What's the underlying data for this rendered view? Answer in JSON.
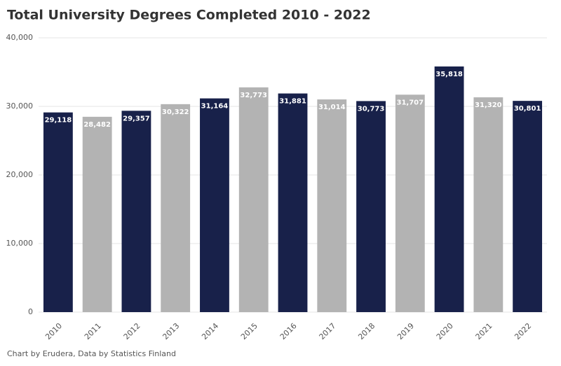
{
  "chart_data": {
    "type": "bar",
    "title": "Total University Degrees Completed 2010 - 2022",
    "source": "Chart by Erudera, Data by Statistics Finland",
    "categories": [
      "2010",
      "2011",
      "2012",
      "2013",
      "2014",
      "2015",
      "2016",
      "2017",
      "2018",
      "2019",
      "2020",
      "2021",
      "2022"
    ],
    "values": [
      29118,
      28482,
      29357,
      30322,
      31164,
      32773,
      31881,
      31014,
      30773,
      31707,
      35818,
      31320,
      30801
    ],
    "value_labels": [
      "29,118",
      "28,482",
      "29,357",
      "30,322",
      "31,164",
      "32,773",
      "31,881",
      "31,014",
      "30,773",
      "31,707",
      "35,818",
      "31,320",
      "30,801"
    ],
    "colors": [
      "#18214a",
      "#b3b3b3",
      "#18214a",
      "#b3b3b3",
      "#18214a",
      "#b3b3b3",
      "#18214a",
      "#b3b3b3",
      "#18214a",
      "#b3b3b3",
      "#18214a",
      "#b3b3b3",
      "#18214a"
    ],
    "ylim": [
      0,
      40000
    ],
    "yticks": [
      0,
      {
        "value": 10000,
        "label": "10,000"
      },
      {
        "value": 20000,
        "label": "20,000"
      },
      {
        "value": 30000,
        "label": "30,000"
      },
      {
        "value": 40000,
        "label": "40,000"
      }
    ],
    "grid": true
  }
}
